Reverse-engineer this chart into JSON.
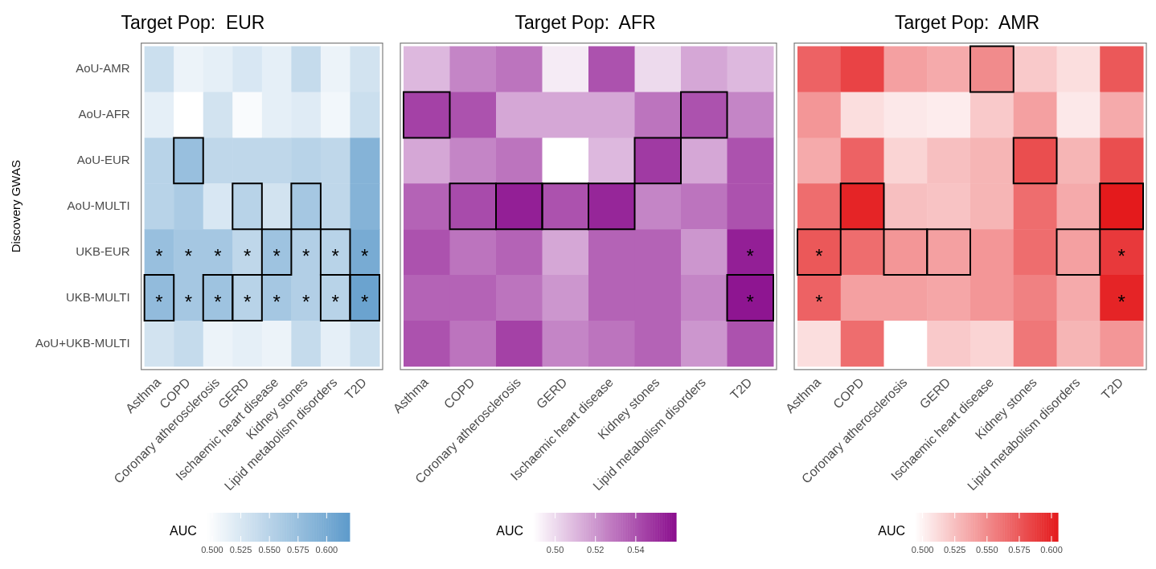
{
  "chart_data": [
    {
      "type": "heatmap",
      "title": "Target Pop:  EUR",
      "ylabel": "Discovery GWAS",
      "clabel": "AUC",
      "color": "#5e9bcb",
      "categories": [
        "Asthma",
        "COPD",
        "Coronary atherosclerosis",
        "GERD",
        "Ischaemic heart disease",
        "Kidney stones",
        "Lipid metabolism disorders",
        "T2D"
      ],
      "y_categories": [
        "AoU-AMR",
        "AoU-AFR",
        "AoU-EUR",
        "AoU-MULTI",
        "UKB-EUR",
        "UKB-MULTI",
        "AoU+UKB-MULTI"
      ],
      "cells": [
        [
          0.535,
          0.51,
          0.515,
          0.525,
          0.515,
          0.54,
          0.51,
          0.53
        ],
        [
          0.515,
          0.495,
          0.53,
          0.5,
          0.515,
          0.52,
          0.505,
          0.535
        ],
        [
          0.55,
          0.575,
          0.545,
          0.545,
          0.545,
          0.55,
          0.545,
          0.59
        ],
        [
          0.55,
          0.56,
          0.525,
          0.55,
          0.53,
          0.565,
          0.545,
          0.59
        ],
        [
          0.575,
          0.565,
          0.565,
          0.545,
          0.57,
          0.555,
          0.55,
          0.6
        ],
        [
          0.58,
          0.565,
          0.57,
          0.55,
          0.565,
          0.555,
          0.55,
          0.61
        ],
        [
          0.53,
          0.54,
          0.51,
          0.515,
          0.51,
          0.54,
          0.515,
          0.535
        ]
      ],
      "cell_labels": [
        [
          null,
          null,
          null,
          null,
          null,
          null,
          null,
          null
        ],
        [
          null,
          null,
          null,
          null,
          null,
          null,
          null,
          null
        ],
        [
          null,
          null,
          null,
          null,
          null,
          null,
          null,
          null
        ],
        [
          null,
          null,
          null,
          null,
          null,
          null,
          null,
          null
        ],
        [
          "*",
          "*",
          "*",
          "*",
          "*",
          "*",
          "*",
          "*"
        ],
        [
          "*",
          "*",
          "*",
          "*",
          "*",
          "*",
          "*",
          "*"
        ],
        [
          null,
          null,
          null,
          null,
          null,
          null,
          null,
          null
        ]
      ],
      "clim": [
        0.495,
        0.62
      ],
      "cticks": [
        {
          "value": 0.5,
          "label": "0.500"
        },
        {
          "value": 0.525,
          "label": "0.525"
        },
        {
          "value": 0.55,
          "label": "0.550"
        },
        {
          "value": 0.575,
          "label": "0.575"
        },
        {
          "value": 0.6,
          "label": "0.600"
        }
      ]
    },
    {
      "type": "heatmap",
      "title": "Target Pop:  AFR",
      "clabel": "AUC",
      "color": "#8b0e8e",
      "tick_labels": "x",
      "categories": [
        "Asthma",
        "COPD",
        "Coronary atherosclerosis",
        "GERD",
        "Ischaemic heart disease",
        "Kidney stones",
        "Lipid metabolism disorders",
        "T2D"
      ],
      "y_categories": [
        null,
        null,
        null,
        null,
        null,
        null,
        null
      ],
      "cells": [
        [
          0.51,
          0.525,
          0.53,
          0.495,
          0.54,
          0.5,
          0.515,
          0.51
        ],
        [
          0.545,
          0.54,
          0.515,
          0.515,
          0.515,
          0.53,
          0.54,
          0.525
        ],
        [
          0.515,
          0.525,
          0.53,
          0.489,
          0.51,
          0.547,
          0.515,
          0.54
        ],
        [
          0.535,
          0.542,
          0.555,
          0.54,
          0.553,
          0.525,
          0.53,
          0.54
        ],
        [
          0.54,
          0.53,
          0.535,
          0.515,
          0.535,
          0.535,
          0.52,
          0.555
        ],
        [
          0.535,
          0.535,
          0.53,
          0.52,
          0.535,
          0.535,
          0.525,
          0.558
        ],
        [
          0.54,
          0.53,
          0.545,
          0.525,
          0.53,
          0.535,
          0.52,
          0.54
        ]
      ],
      "cell_labels": [
        [
          null,
          null,
          null,
          null,
          null,
          null,
          null,
          null
        ],
        [
          null,
          null,
          null,
          null,
          null,
          null,
          null,
          null
        ],
        [
          null,
          null,
          null,
          null,
          null,
          null,
          null,
          null
        ],
        [
          null,
          null,
          null,
          null,
          null,
          null,
          null,
          null
        ],
        [
          null,
          null,
          null,
          null,
          null,
          null,
          null,
          "*"
        ],
        [
          null,
          null,
          null,
          null,
          null,
          null,
          null,
          "*"
        ],
        [
          null,
          null,
          null,
          null,
          null,
          null,
          null,
          null
        ]
      ],
      "clim": [
        0.489,
        0.56
      ],
      "cticks": [
        {
          "value": 0.5,
          "label": "0.50"
        },
        {
          "value": 0.52,
          "label": "0.52"
        },
        {
          "value": 0.54,
          "label": "0.54"
        }
      ]
    },
    {
      "type": "heatmap",
      "title": "Target Pop:  AMR",
      "clabel": "AUC",
      "color": "#e41a1c",
      "tick_labels": "x",
      "categories": [
        "Asthma",
        "COPD",
        "Coronary atherosclerosis",
        "GERD",
        "Ischaemic heart disease",
        "Kidney stones",
        "Lipid metabolism disorders",
        "T2D"
      ],
      "y_categories": [
        null,
        null,
        null,
        null,
        null,
        null,
        null
      ],
      "cells": [
        [
          0.57,
          0.585,
          0.54,
          0.535,
          0.55,
          0.52,
          0.51,
          0.575
        ],
        [
          0.545,
          0.51,
          0.505,
          0.503,
          0.52,
          0.54,
          0.505,
          0.535
        ],
        [
          0.535,
          0.57,
          0.515,
          0.525,
          0.53,
          0.58,
          0.53,
          0.58
        ],
        [
          0.565,
          0.6,
          0.525,
          0.523,
          0.53,
          0.565,
          0.535,
          0.605
        ],
        [
          0.575,
          0.565,
          0.545,
          0.54,
          0.545,
          0.565,
          0.54,
          0.59
        ],
        [
          0.57,
          0.54,
          0.54,
          0.537,
          0.545,
          0.555,
          0.535,
          0.6
        ],
        [
          0.51,
          0.565,
          0.494,
          0.52,
          0.515,
          0.56,
          0.53,
          0.545
        ]
      ],
      "cell_labels": [
        [
          null,
          null,
          null,
          null,
          null,
          null,
          null,
          null
        ],
        [
          null,
          null,
          null,
          null,
          null,
          null,
          null,
          null
        ],
        [
          null,
          null,
          null,
          null,
          null,
          null,
          null,
          null
        ],
        [
          null,
          null,
          null,
          null,
          null,
          null,
          null,
          null
        ],
        [
          "*",
          null,
          null,
          null,
          null,
          null,
          null,
          "*"
        ],
        [
          "*",
          null,
          null,
          null,
          null,
          null,
          null,
          "*"
        ],
        [
          null,
          null,
          null,
          null,
          null,
          null,
          null,
          null
        ]
      ],
      "clim": [
        0.494,
        0.605
      ],
      "cticks": [
        {
          "value": 0.5,
          "label": "0.500"
        },
        {
          "value": 0.525,
          "label": "0.525"
        },
        {
          "value": 0.55,
          "label": "0.550"
        },
        {
          "value": 0.575,
          "label": "0.575"
        },
        {
          "value": 0.6,
          "label": "0.600"
        }
      ]
    }
  ]
}
